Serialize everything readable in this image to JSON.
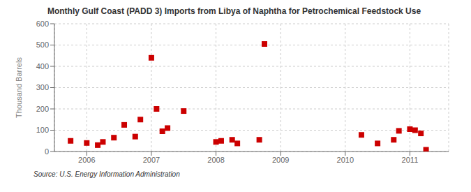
{
  "chart_data": {
    "type": "scatter",
    "title": "Monthly Gulf Coast (PADD 3) Imports from Libya of Naphtha for Petrochemical Feedstock Use",
    "y_label": "Thousand Barrels",
    "annotations": [
      "Source: U.S. Energy Information Administration"
    ],
    "x": [
      2005.75,
      2006.0,
      2006.17,
      2006.25,
      2006.42,
      2006.58,
      2006.75,
      2006.83,
      2007.0,
      2007.08,
      2007.17,
      2007.25,
      2007.5,
      2008.0,
      2008.08,
      2008.25,
      2008.33,
      2008.67,
      2008.75,
      2010.25,
      2010.5,
      2010.75,
      2010.83,
      2011.0,
      2011.08,
      2011.17,
      2011.25
    ],
    "values": [
      50,
      40,
      30,
      45,
      65,
      125,
      70,
      150,
      440,
      200,
      95,
      110,
      190,
      45,
      50,
      55,
      38,
      55,
      505,
      78,
      38,
      55,
      97,
      105,
      100,
      85,
      8
    ],
    "color": "#cc0000",
    "marker": "square",
    "xlim": [
      2005.5,
      2011.6
    ],
    "xticks": [
      2006,
      2007,
      2008,
      2009,
      2010,
      2011
    ],
    "ylim": [
      0,
      600
    ],
    "yticks": [
      0,
      100,
      200,
      300,
      400,
      500,
      600
    ],
    "grid": true
  }
}
